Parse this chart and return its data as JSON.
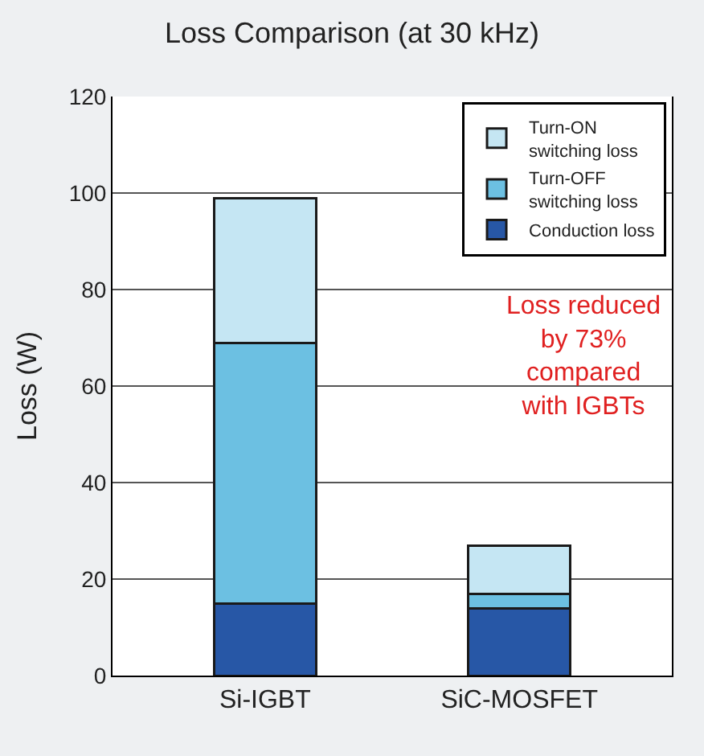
{
  "chart_data": {
    "type": "bar",
    "title": "Loss Comparison (at 30 kHz)",
    "ylabel": "Loss (W)",
    "categories": [
      "Si-IGBT",
      "SiC-MOSFET"
    ],
    "stacked": true,
    "series": [
      {
        "name": "Conduction loss",
        "color": "#2757a6",
        "values": [
          15,
          14
        ]
      },
      {
        "name": "Turn-OFF\nswitching loss",
        "color": "#6cc0e2",
        "values": [
          54,
          3
        ]
      },
      {
        "name": "Turn-ON\nswitching loss",
        "color": "#c5e6f3",
        "values": [
          30,
          10
        ]
      }
    ],
    "ylim": [
      0,
      120
    ],
    "yticks": [
      0,
      20,
      40,
      60,
      80,
      100,
      120
    ],
    "grid": "y",
    "legend": "top right",
    "annotations": [
      "Loss reduced\nby 73%\ncompared\nwith IGBTs"
    ]
  }
}
